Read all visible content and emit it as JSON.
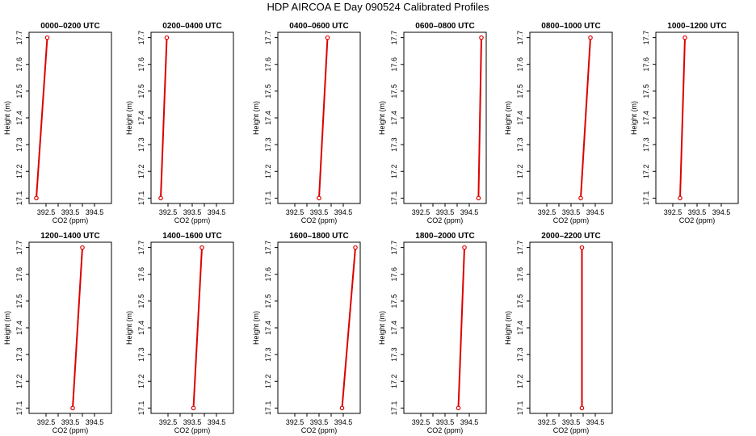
{
  "title": "HDP AIRCOA E  Day 090524  Calibrated Profiles",
  "colors": {
    "line": "#dd0000",
    "axes": "#000000"
  },
  "chart_data": [
    {
      "type": "line",
      "title": "0000–0200 UTC",
      "xlabel": "CO2 (ppm)",
      "ylabel": "Height (m)",
      "xlim": [
        391.8,
        395.2
      ],
      "ylim": [
        17.08,
        17.72
      ],
      "xticks": [
        "392.5",
        "393.5",
        "394.5"
      ],
      "yticks": [
        "17.1",
        "17.2",
        "17.3",
        "17.4",
        "17.5",
        "17.6",
        "17.7"
      ],
      "x": [
        392.1,
        392.55
      ],
      "y": [
        17.1,
        17.7
      ]
    },
    {
      "type": "line",
      "title": "0200–0400 UTC",
      "xlabel": "CO2 (ppm)",
      "ylabel": "Height (m)",
      "xlim": [
        391.8,
        395.2
      ],
      "ylim": [
        17.08,
        17.72
      ],
      "xticks": [
        "392.5",
        "393.5",
        "394.5"
      ],
      "yticks": [
        "17.1",
        "17.2",
        "17.3",
        "17.4",
        "17.5",
        "17.6",
        "17.7"
      ],
      "x": [
        392.2,
        392.45
      ],
      "y": [
        17.1,
        17.7
      ]
    },
    {
      "type": "line",
      "title": "0400–0600 UTC",
      "xlabel": "CO2 (ppm)",
      "ylabel": "Height (m)",
      "xlim": [
        391.8,
        395.2
      ],
      "ylim": [
        17.08,
        17.72
      ],
      "xticks": [
        "392.5",
        "393.5",
        "394.5"
      ],
      "yticks": [
        "17.1",
        "17.2",
        "17.3",
        "17.4",
        "17.5",
        "17.6",
        "17.7"
      ],
      "x": [
        393.5,
        393.85
      ],
      "y": [
        17.1,
        17.7
      ]
    },
    {
      "type": "line",
      "title": "0600–0800 UTC",
      "xlabel": "CO2 (ppm)",
      "ylabel": "Height (m)",
      "xlim": [
        391.8,
        395.2
      ],
      "ylim": [
        17.08,
        17.72
      ],
      "xticks": [
        "392.5",
        "393.5",
        "394.5"
      ],
      "yticks": [
        "17.1",
        "17.2",
        "17.3",
        "17.4",
        "17.5",
        "17.6",
        "17.7"
      ],
      "x": [
        394.88,
        395.0
      ],
      "y": [
        17.1,
        17.7
      ]
    },
    {
      "type": "line",
      "title": "0800–1000 UTC",
      "xlabel": "CO2 (ppm)",
      "ylabel": "Height (m)",
      "xlim": [
        391.8,
        395.2
      ],
      "ylim": [
        17.08,
        17.72
      ],
      "xticks": [
        "392.5",
        "393.5",
        "394.5"
      ],
      "yticks": [
        "17.1",
        "17.2",
        "17.3",
        "17.4",
        "17.5",
        "17.6",
        "17.7"
      ],
      "x": [
        393.9,
        394.3
      ],
      "y": [
        17.1,
        17.7
      ]
    },
    {
      "type": "line",
      "title": "1000–1200 UTC",
      "xlabel": "CO2 (ppm)",
      "ylabel": "Height (m)",
      "xlim": [
        391.8,
        395.2
      ],
      "ylim": [
        17.08,
        17.72
      ],
      "xticks": [
        "392.5",
        "393.5",
        "394.5"
      ],
      "yticks": [
        "17.1",
        "17.2",
        "17.3",
        "17.4",
        "17.5",
        "17.6",
        "17.7"
      ],
      "x": [
        392.8,
        393.0
      ],
      "y": [
        17.1,
        17.7
      ]
    },
    {
      "type": "line",
      "title": "1200–1400 UTC",
      "xlabel": "CO2 (ppm)",
      "ylabel": "Height (m)",
      "xlim": [
        391.8,
        395.2
      ],
      "ylim": [
        17.08,
        17.72
      ],
      "xticks": [
        "392.5",
        "393.5",
        "394.5"
      ],
      "yticks": [
        "17.1",
        "17.2",
        "17.3",
        "17.4",
        "17.5",
        "17.6",
        "17.7"
      ],
      "x": [
        393.6,
        394.0
      ],
      "y": [
        17.1,
        17.7
      ]
    },
    {
      "type": "line",
      "title": "1400–1600 UTC",
      "xlabel": "CO2 (ppm)",
      "ylabel": "Height (m)",
      "xlim": [
        391.8,
        395.2
      ],
      "ylim": [
        17.08,
        17.72
      ],
      "xticks": [
        "392.5",
        "393.5",
        "394.5"
      ],
      "yticks": [
        "17.1",
        "17.2",
        "17.3",
        "17.4",
        "17.5",
        "17.6",
        "17.7"
      ],
      "x": [
        393.55,
        393.9
      ],
      "y": [
        17.1,
        17.7
      ]
    },
    {
      "type": "line",
      "title": "1600–1800 UTC",
      "xlabel": "CO2 (ppm)",
      "ylabel": "Height (m)",
      "xlim": [
        391.8,
        395.2
      ],
      "ylim": [
        17.08,
        17.72
      ],
      "xticks": [
        "392.5",
        "393.5",
        "394.5"
      ],
      "yticks": [
        "17.1",
        "17.2",
        "17.3",
        "17.4",
        "17.5",
        "17.6",
        "17.7"
      ],
      "x": [
        394.45,
        395.0
      ],
      "y": [
        17.1,
        17.7
      ]
    },
    {
      "type": "line",
      "title": "1800–2000 UTC",
      "xlabel": "CO2 (ppm)",
      "ylabel": "Height (m)",
      "xlim": [
        391.8,
        395.2
      ],
      "ylim": [
        17.08,
        17.72
      ],
      "xticks": [
        "392.5",
        "393.5",
        "394.5"
      ],
      "yticks": [
        "17.1",
        "17.2",
        "17.3",
        "17.4",
        "17.5",
        "17.6",
        "17.7"
      ],
      "x": [
        394.05,
        394.3
      ],
      "y": [
        17.1,
        17.7
      ]
    },
    {
      "type": "line",
      "title": "2000–2200 UTC",
      "xlabel": "CO2 (ppm)",
      "ylabel": "Height (m)",
      "xlim": [
        391.8,
        395.2
      ],
      "ylim": [
        17.08,
        17.72
      ],
      "xticks": [
        "392.5",
        "393.5",
        "394.5"
      ],
      "yticks": [
        "17.1",
        "17.2",
        "17.3",
        "17.4",
        "17.5",
        "17.6",
        "17.7"
      ],
      "x": [
        393.95,
        393.95
      ],
      "y": [
        17.1,
        17.7
      ]
    }
  ]
}
